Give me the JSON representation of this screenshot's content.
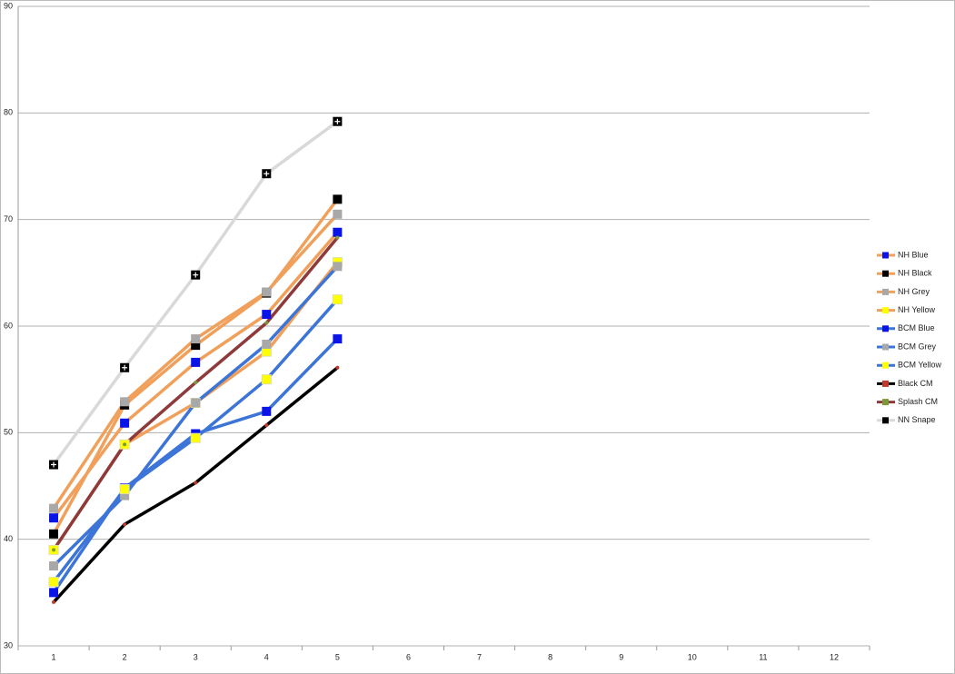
{
  "chart_data": {
    "type": "line",
    "categories": [
      "1",
      "2",
      "3",
      "4",
      "5",
      "6",
      "7",
      "8",
      "9",
      "10",
      "11",
      "12"
    ],
    "ylim": [
      30,
      90
    ],
    "yticks": [
      30,
      40,
      50,
      60,
      70,
      80,
      90
    ],
    "grid": true,
    "legend": "right",
    "series": [
      {
        "name": "NH Blue",
        "color": "#f0a05a",
        "marker_color": "#0a14e6",
        "values": [
          42,
          50.9,
          56.6,
          61.1,
          68.8,
          null,
          null,
          null,
          null,
          null,
          null,
          null
        ]
      },
      {
        "name": "NH Black",
        "color": "#f0a05a",
        "marker_color": "#000000",
        "values": [
          40.5,
          52.6,
          58.2,
          63.1,
          71.9,
          null,
          null,
          null,
          null,
          null,
          null,
          null
        ]
      },
      {
        "name": "NH Grey",
        "color": "#f0a05a",
        "marker_color": "#a8a8a8",
        "values": [
          42.9,
          52.9,
          58.8,
          63.2,
          70.5,
          null,
          null,
          null,
          null,
          null,
          null,
          null
        ]
      },
      {
        "name": "NH Yellow",
        "color": "#f0a05a",
        "marker_color": "#ffff00",
        "values": [
          39,
          48.9,
          52.8,
          57.6,
          66,
          null,
          null,
          null,
          null,
          null,
          null,
          null
        ]
      },
      {
        "name": "BCM Blue",
        "color": "#3c74d8",
        "marker_color": "#0a14e6",
        "values": [
          35,
          44.8,
          49.9,
          52,
          58.8,
          null,
          null,
          null,
          null,
          null,
          null,
          null
        ]
      },
      {
        "name": "BCM Grey",
        "color": "#3c74d8",
        "marker_color": "#a8a8a8",
        "values": [
          37.5,
          44.1,
          52.8,
          58.3,
          65.6,
          null,
          null,
          null,
          null,
          null,
          null,
          null
        ]
      },
      {
        "name": "BCM Yellow",
        "color": "#3c74d8",
        "marker_color": "#ffff00",
        "values": [
          36,
          44.7,
          49.5,
          55,
          62.5,
          null,
          null,
          null,
          null,
          null,
          null,
          null
        ]
      },
      {
        "name": "Black CM",
        "color": "#000000",
        "marker_color": "#c0392b",
        "values": [
          34.1,
          41.4,
          45.3,
          50.7,
          56.1,
          null,
          null,
          null,
          null,
          null,
          null,
          null
        ]
      },
      {
        "name": "Splash CM",
        "color": "#8e3a3a",
        "marker_color": "#7a9a3a",
        "values": [
          39,
          48.9,
          54.7,
          60.3,
          68.3,
          null,
          null,
          null,
          null,
          null,
          null,
          null
        ]
      },
      {
        "name": "NN Snape",
        "color": "#d9d9d9",
        "marker_color": "#000000",
        "values": [
          47,
          56.1,
          64.8,
          74.3,
          79.2,
          null,
          null,
          null,
          null,
          null,
          null,
          null
        ]
      }
    ]
  }
}
